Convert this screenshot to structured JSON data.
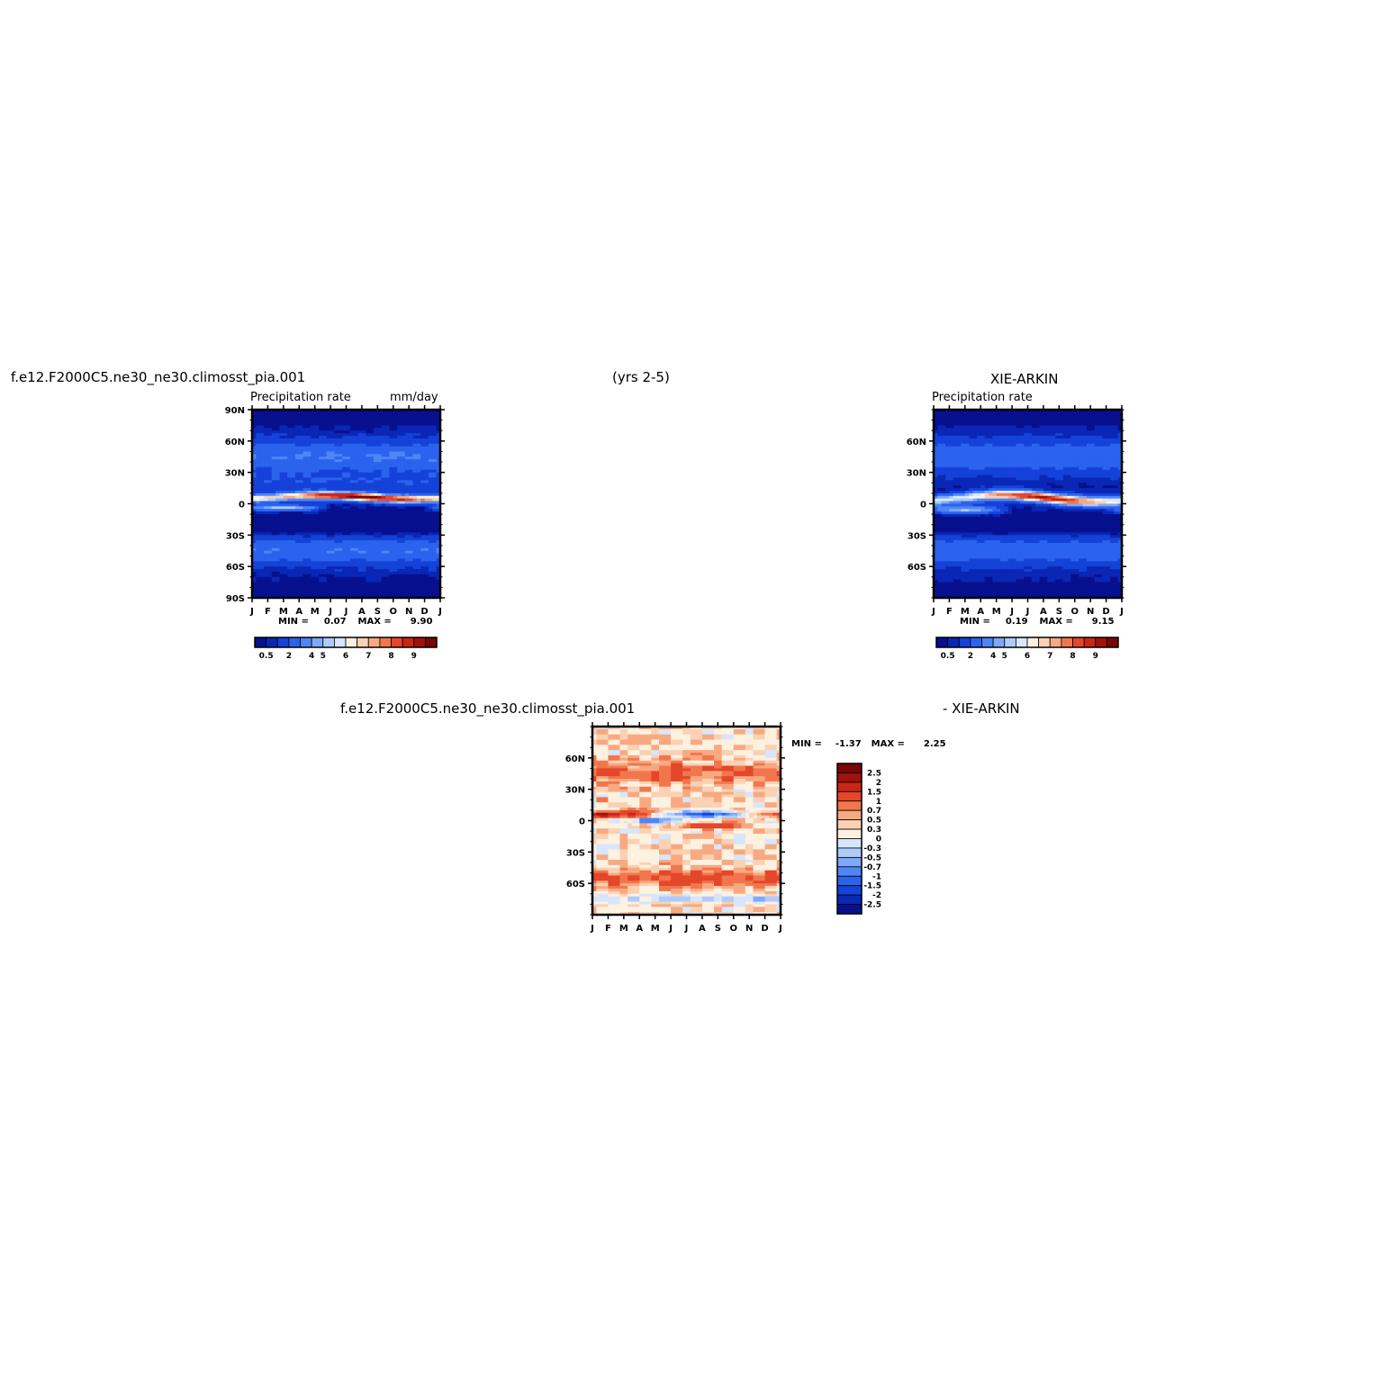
{
  "header": {
    "case_name": "f.e12.F2000C5.ne30_ne30.climosst_pia.001",
    "years": "(yrs 2-5)",
    "obs_name": "XIE-ARKIN",
    "diff_case": "f.e12.F2000C5.ne30_ne30.climosst_pia.001",
    "diff_obs": "- XIE-ARKIN"
  },
  "colors": {
    "seq": [
      "#07108f",
      "#0a27b5",
      "#1542d8",
      "#2a63ee",
      "#4e86f5",
      "#7ea8f8",
      "#aecbf9",
      "#d7e6fc",
      "#fdf1e0",
      "#fbd1b3",
      "#f8a981",
      "#f2764d",
      "#e4472a",
      "#c92617",
      "#a0120c",
      "#780706"
    ],
    "diff": [
      "#07108f",
      "#0a27b5",
      "#1542d8",
      "#2a63ee",
      "#4e86f5",
      "#7ea8f8",
      "#aecbf9",
      "#d7e6fc",
      "#fdf1e0",
      "#fbd1b3",
      "#f8a981",
      "#f2764d",
      "#e4472a",
      "#c92617",
      "#a0120c",
      "#780706"
    ]
  },
  "chart_data": [
    {
      "type": "heatmap",
      "title": "Precipitation rate",
      "units": "mm/day",
      "x": [
        "J",
        "F",
        "M",
        "A",
        "M",
        "J",
        "J",
        "A",
        "S",
        "O",
        "N",
        "D",
        "J"
      ],
      "y_ticks": [
        "90N",
        "60N",
        "30N",
        "0",
        "30S",
        "60S",
        "90S"
      ],
      "ylim": [
        -90,
        90
      ],
      "stats": {
        "min_label": "MIN =",
        "min": "0.07",
        "max_label": "MAX =",
        "max": "9.90"
      },
      "colorbar": [
        "0.5",
        "2",
        "4",
        "5",
        "6",
        "7",
        "8",
        "9"
      ],
      "itcz_peak": 9.9
    },
    {
      "type": "heatmap",
      "title": "Precipitation rate",
      "x": [
        "J",
        "F",
        "M",
        "A",
        "M",
        "J",
        "J",
        "A",
        "S",
        "O",
        "N",
        "D",
        "J"
      ],
      "y_ticks": [
        "60N",
        "30N",
        "0",
        "30S",
        "60S"
      ],
      "ylim": [
        -90,
        90
      ],
      "stats": {
        "min_label": "MIN =",
        "min": "0.19",
        "max_label": "MAX =",
        "max": "9.15"
      },
      "colorbar": [
        "0.5",
        "2",
        "4",
        "5",
        "6",
        "7",
        "8",
        "9"
      ],
      "itcz_peak": 9.15
    },
    {
      "type": "heatmap",
      "x": [
        "J",
        "F",
        "M",
        "A",
        "M",
        "J",
        "J",
        "A",
        "S",
        "O",
        "N",
        "D",
        "J"
      ],
      "y_ticks": [
        "60N",
        "30N",
        "0",
        "30S",
        "60S"
      ],
      "ylim": [
        -90,
        90
      ],
      "stats": {
        "min_label": "MIN =",
        "min": "-1.37",
        "max_label": "MAX =",
        "max": "2.25"
      },
      "colorbar": [
        "2.5",
        "2",
        "1.5",
        "1",
        "0.7",
        "0.5",
        "0.3",
        "0",
        "-0.3",
        "-0.5",
        "-0.7",
        "-1",
        "-1.5",
        "-2",
        "-2.5"
      ]
    }
  ]
}
